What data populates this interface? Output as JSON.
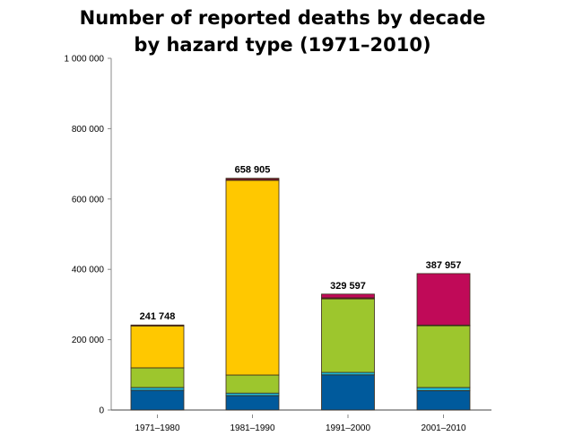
{
  "chart_data": {
    "type": "bar",
    "stacked": true,
    "title": [
      "Number of reported deaths by decade",
      "by hazard type (1971–2010)"
    ],
    "xlabel": "",
    "ylabel": "",
    "ylim": [
      0,
      1000000
    ],
    "yticks": [
      0,
      200000,
      400000,
      600000,
      800000,
      1000000
    ],
    "ytick_labels": [
      "0",
      "200 000",
      "400 000",
      "600 000",
      "800 000",
      "1 000 000"
    ],
    "grid": false,
    "legend": "none",
    "categories": [
      "1971–1980",
      "1981–1990",
      "1991–2000",
      "2001–2010"
    ],
    "totals_labels": [
      "241 748",
      "658 905",
      "329 597",
      "387 957"
    ],
    "series": [
      {
        "color": "#005a9c",
        "values": [
          56000,
          41000,
          100000,
          55000
        ]
      },
      {
        "color": "#1fb6d6",
        "values": [
          8000,
          7000,
          7000,
          9000
        ]
      },
      {
        "color": "#9dc62d",
        "values": [
          56000,
          51500,
          209000,
          176000
        ]
      },
      {
        "color": "#ffc800",
        "values": [
          119000,
          553500,
          0,
          0
        ]
      },
      {
        "color": "#6e1a26",
        "values": [
          2748,
          5905,
          3000,
          1500
        ]
      },
      {
        "color": "#c00a58",
        "values": [
          0,
          0,
          10597,
          146457
        ]
      }
    ]
  }
}
